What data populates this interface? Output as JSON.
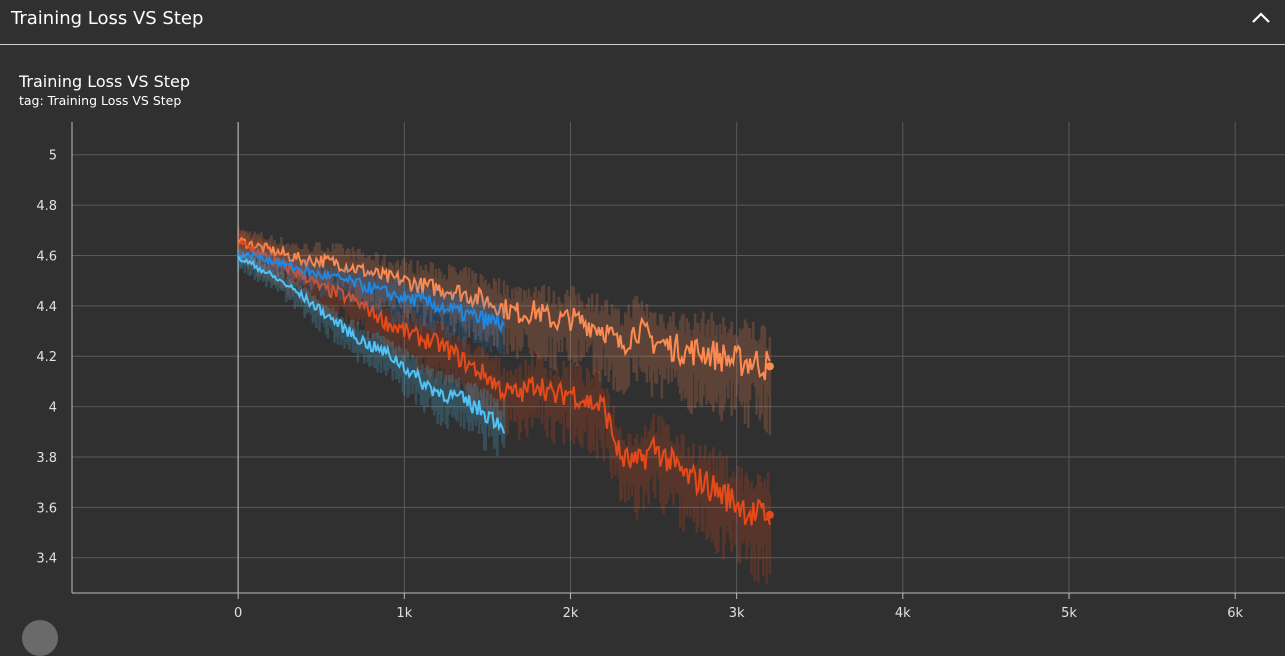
{
  "section": {
    "title": "Training Loss VS Step",
    "collapse_icon": "chevron-up-icon"
  },
  "card": {
    "title": "Training Loss VS Step",
    "subtitle": "tag: Training Loss VS Step"
  },
  "chart_data": {
    "type": "line",
    "title": "Training Loss VS Step",
    "xlabel": "",
    "ylabel": "",
    "x_ticks": [
      "0",
      "1k",
      "2k",
      "3k",
      "4k",
      "5k",
      "6k"
    ],
    "y_ticks": [
      "5",
      "4.8",
      "4.6",
      "4.4",
      "4.2",
      "4",
      "3.8",
      "3.6",
      "3.4"
    ],
    "xlim": [
      -1000,
      6300
    ],
    "ylim": [
      3.26,
      5.13
    ],
    "grid": true,
    "series": [
      {
        "color": "#ff8a50",
        "x": [
          0,
          100,
          200,
          300,
          400,
          500,
          600,
          700,
          800,
          900,
          1000,
          1100,
          1200,
          1300,
          1400,
          1500,
          1600,
          1700,
          1800,
          1900,
          2000,
          2100,
          2200,
          2300,
          2400,
          2500,
          2600,
          2700,
          2800,
          2900,
          3000,
          3100,
          3200
        ],
        "y": [
          4.66,
          4.64,
          4.62,
          4.6,
          4.58,
          4.58,
          4.57,
          4.55,
          4.53,
          4.51,
          4.5,
          4.48,
          4.47,
          4.46,
          4.44,
          4.42,
          4.39,
          4.37,
          4.38,
          4.34,
          4.35,
          4.33,
          4.31,
          4.24,
          4.31,
          4.26,
          4.24,
          4.22,
          4.22,
          4.2,
          4.18,
          4.18,
          4.16
        ]
      },
      {
        "color": "#e64a19",
        "x": [
          0,
          100,
          200,
          300,
          400,
          500,
          600,
          700,
          800,
          900,
          1000,
          1100,
          1200,
          1300,
          1400,
          1500,
          1600,
          1700,
          1800,
          1900,
          2000,
          2100,
          2200,
          2300,
          2400,
          2500,
          2600,
          2700,
          2800,
          2900,
          3000,
          3100,
          3200
        ],
        "y": [
          4.65,
          4.62,
          4.58,
          4.55,
          4.52,
          4.47,
          4.45,
          4.42,
          4.38,
          4.33,
          4.3,
          4.27,
          4.25,
          4.21,
          4.16,
          4.12,
          4.06,
          4.05,
          4.1,
          4.04,
          4.06,
          4.02,
          4.0,
          3.8,
          3.77,
          3.84,
          3.78,
          3.72,
          3.7,
          3.66,
          3.62,
          3.57,
          3.57
        ]
      },
      {
        "color": "#1e88e5",
        "x": [
          0,
          100,
          200,
          300,
          400,
          500,
          600,
          700,
          800,
          900,
          1000,
          1100,
          1200,
          1300,
          1400,
          1500,
          1600
        ],
        "y": [
          4.6,
          4.6,
          4.58,
          4.56,
          4.54,
          4.52,
          4.51,
          4.49,
          4.47,
          4.45,
          4.43,
          4.42,
          4.4,
          4.38,
          4.36,
          4.34,
          4.33
        ]
      },
      {
        "color": "#4fc3f7",
        "x": [
          0,
          100,
          200,
          300,
          400,
          500,
          600,
          700,
          800,
          900,
          1000,
          1100,
          1200,
          1300,
          1400,
          1500,
          1600
        ],
        "y": [
          4.59,
          4.56,
          4.52,
          4.48,
          4.43,
          4.38,
          4.33,
          4.28,
          4.24,
          4.21,
          4.16,
          4.1,
          4.06,
          4.04,
          4.01,
          3.97,
          3.93
        ]
      }
    ]
  }
}
